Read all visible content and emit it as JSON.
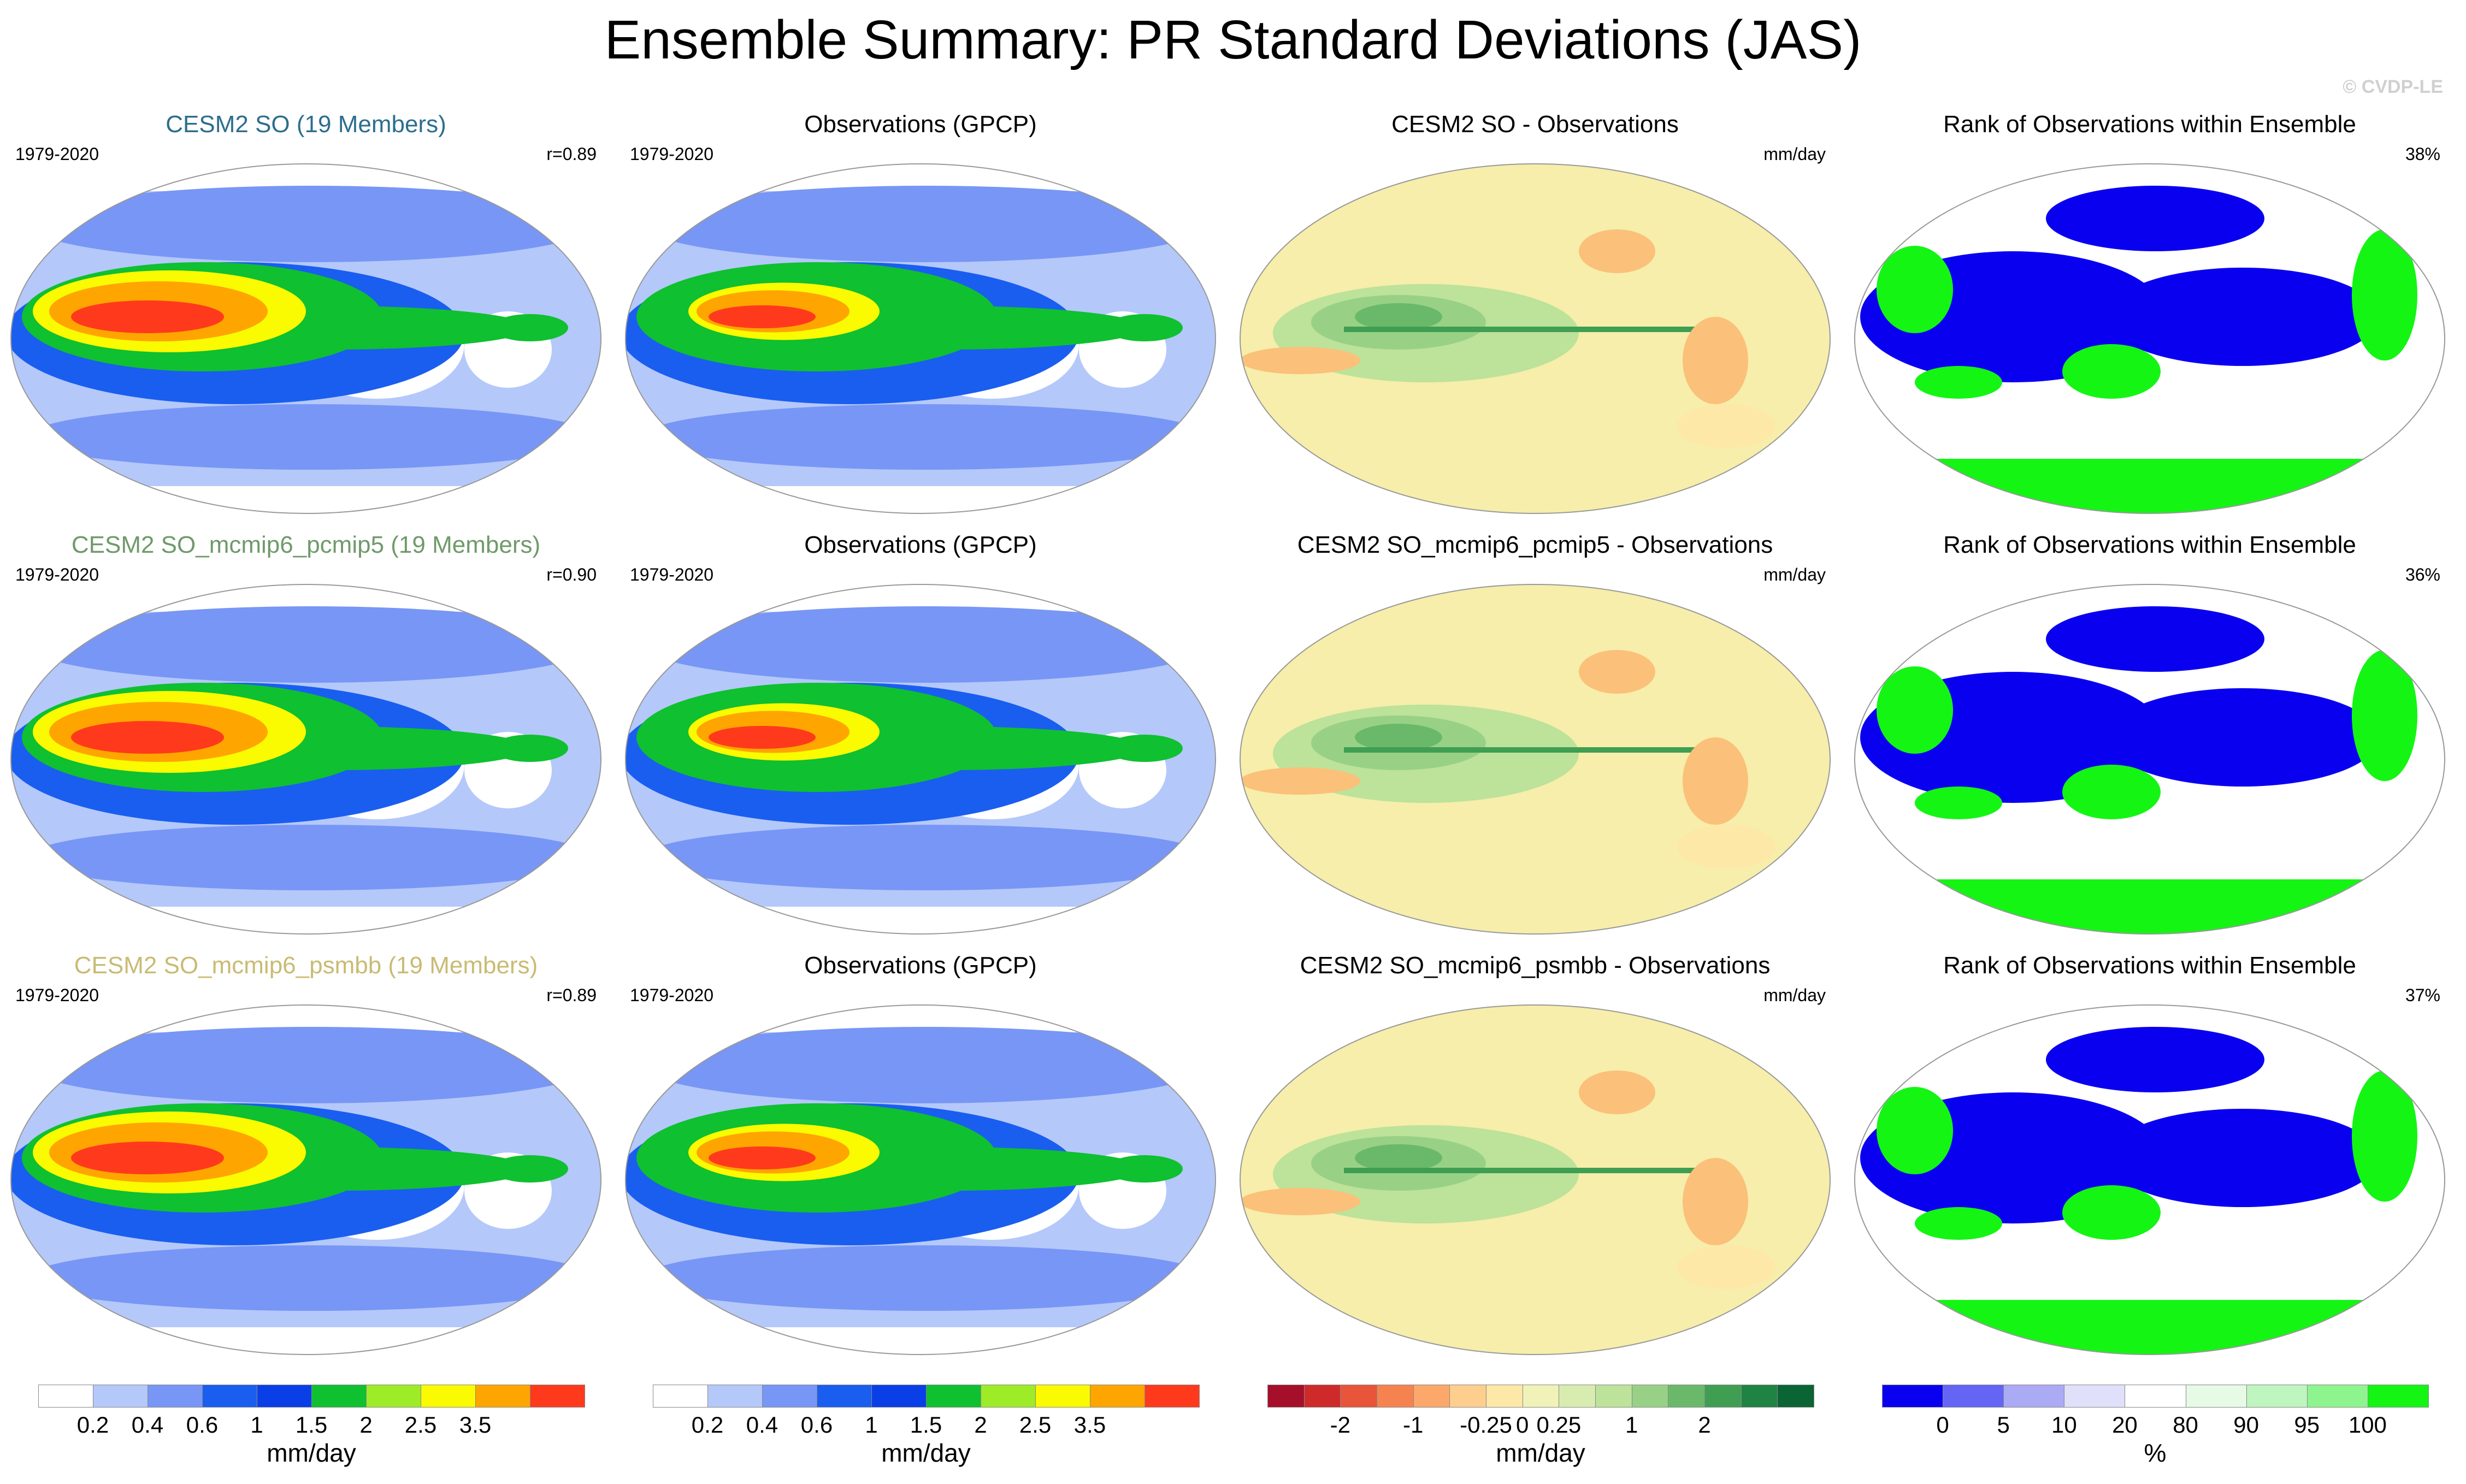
{
  "title": "Ensemble Summary: PR Standard Deviations (JAS)",
  "watermark": "© CVDP-LE",
  "rows": [
    {
      "ensemble": {
        "title": "CESM2 SO (19 Members)",
        "title_color": "#2d6e8e",
        "years": "1979-2020",
        "stat": "r=0.89"
      },
      "obs": {
        "title": "Observations (GPCP)",
        "years": "1979-2020"
      },
      "diff": {
        "title": "CESM2 SO - Observations",
        "units": "mm/day"
      },
      "rank": {
        "title": "Rank of Observations within Ensemble",
        "pct": "38%"
      }
    },
    {
      "ensemble": {
        "title": "CESM2 SO_mcmip6_pcmip5 (19 Members)",
        "title_color": "#6f9a6a",
        "years": "1979-2020",
        "stat": "r=0.90"
      },
      "obs": {
        "title": "Observations (GPCP)",
        "years": "1979-2020"
      },
      "diff": {
        "title": "CESM2 SO_mcmip6_pcmip5 - Observations",
        "units": "mm/day"
      },
      "rank": {
        "title": "Rank of Observations within Ensemble",
        "pct": "36%"
      }
    },
    {
      "ensemble": {
        "title": "CESM2 SO_mcmip6_psmbb (19 Members)",
        "title_color": "#c9bb74",
        "years": "1979-2020",
        "stat": "r=0.89"
      },
      "obs": {
        "title": "Observations (GPCP)",
        "years": "1979-2020"
      },
      "diff": {
        "title": "CESM2 SO_mcmip6_psmbb - Observations",
        "units": "mm/day"
      },
      "rank": {
        "title": "Rank of Observations within Ensemble",
        "pct": "37%"
      }
    }
  ],
  "colorbars": [
    {
      "name": "std",
      "colors": [
        "#ffffff",
        "#b4c8fa",
        "#7896f5",
        "#1a5ef0",
        "#0a3fe8",
        "#0fc030",
        "#9eeb28",
        "#fafa00",
        "#ffa500",
        "#ff3a1c"
      ],
      "labels": [
        "0.2",
        "0.4",
        "0.6",
        "1",
        "1.5",
        "2",
        "2.5",
        "3.5"
      ],
      "unit": "mm/day"
    },
    {
      "name": "std",
      "colors": [
        "#ffffff",
        "#b4c8fa",
        "#7896f5",
        "#1a5ef0",
        "#0a3fe8",
        "#0fc030",
        "#9eeb28",
        "#fafa00",
        "#ffa500",
        "#ff3a1c"
      ],
      "labels": [
        "0.2",
        "0.4",
        "0.6",
        "1",
        "1.5",
        "2",
        "2.5",
        "3.5"
      ],
      "unit": "mm/day"
    },
    {
      "name": "diff",
      "colors": [
        "#a50f2a",
        "#cf2a2a",
        "#e8553a",
        "#f6834f",
        "#fba86a",
        "#fdce8e",
        "#fde8a8",
        "#f0f2b8",
        "#d9ecb0",
        "#bde29a",
        "#98d185",
        "#6ab96a",
        "#3f9e52",
        "#1f8344",
        "#0a6434"
      ],
      "labels": [
        "-2",
        "-1",
        "-0.25",
        "0",
        "0.25",
        "1",
        "2"
      ],
      "label_positions": [
        2,
        4,
        6,
        7,
        8,
        10,
        12
      ],
      "unit": "mm/day"
    },
    {
      "name": "rank",
      "colors": [
        "#0a00f0",
        "#6464f5",
        "#aaaaf5",
        "#e0e0fa",
        "#ffffff",
        "#e6fae6",
        "#bff5bf",
        "#8ef58e",
        "#14f514"
      ],
      "labels": [
        "0",
        "5",
        "10",
        "20",
        "80",
        "90",
        "95",
        "100"
      ],
      "unit": "%"
    }
  ]
}
